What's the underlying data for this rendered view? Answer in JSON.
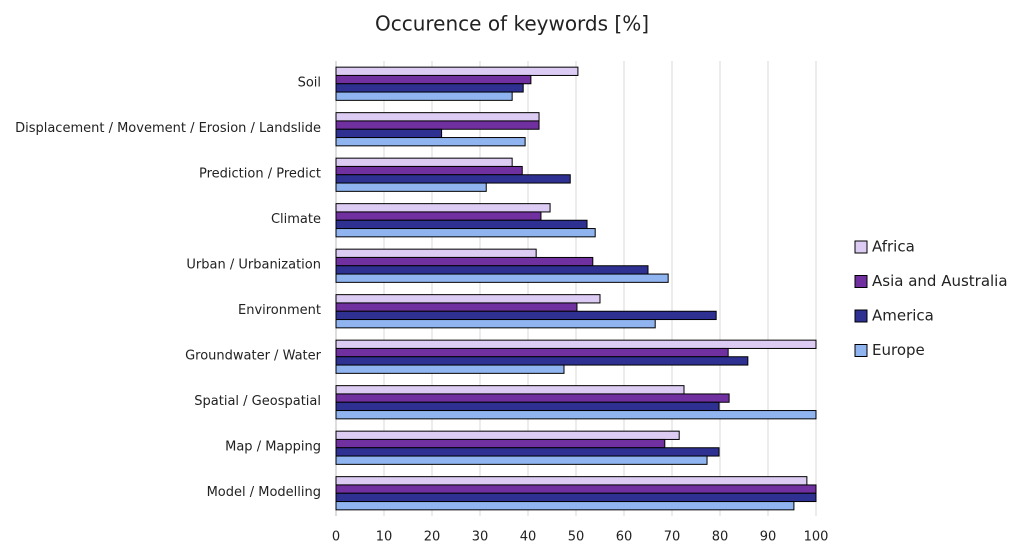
{
  "chart_data": {
    "type": "hbar",
    "title": "Occurence of keywords [%]",
    "categories": [
      "Soil",
      "Displacement / Movement / Erosion / Landslide",
      "Prediction / Predict",
      "Climate",
      "Urban / Urbanization",
      "Environment",
      "Groundwater / Water",
      "Spatial / Geospatial",
      "Map / Mapping",
      "Model / Modelling"
    ],
    "series": [
      {
        "name": "Africa",
        "color": "#dccbf2",
        "values": [
          50.4,
          42.3,
          36.7,
          44.6,
          41.7,
          55,
          100,
          72.5,
          71.5,
          98.1
        ]
      },
      {
        "name": "Asia and Australia",
        "color": "#7030a0",
        "values": [
          40.6,
          42.3,
          38.8,
          42.7,
          53.5,
          50.2,
          81.7,
          81.9,
          68.5,
          100
        ]
      },
      {
        "name": "America",
        "color": "#2e3192",
        "values": [
          39,
          22,
          48.8,
          52.3,
          65,
          79.2,
          85.8,
          79.8,
          79.8,
          100
        ]
      },
      {
        "name": "Europe",
        "color": "#8fb4f0",
        "values": [
          36.7,
          39.4,
          31.3,
          54,
          69.2,
          66.5,
          47.5,
          100,
          77.3,
          95.4
        ]
      }
    ],
    "xlim": [
      0,
      100
    ],
    "xticks": [
      0,
      10,
      20,
      30,
      40,
      50,
      60,
      70,
      80,
      90,
      100
    ],
    "grid": true,
    "legend": "right"
  }
}
